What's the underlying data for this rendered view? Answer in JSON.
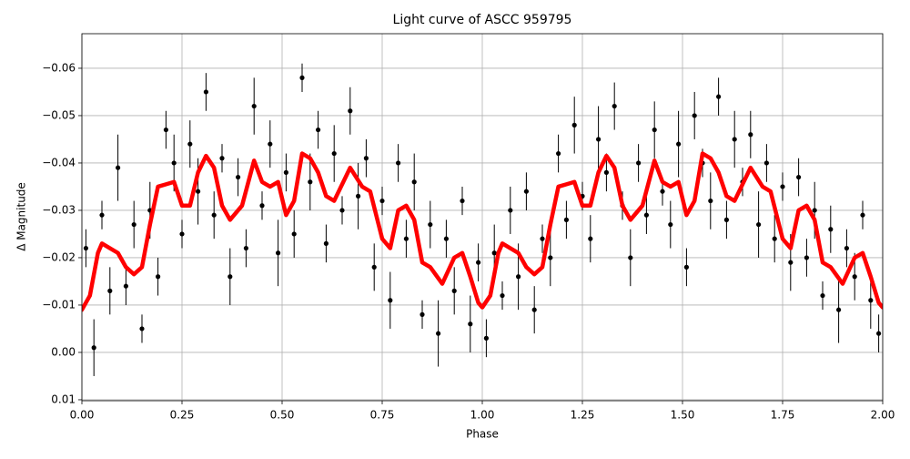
{
  "chart_data": {
    "type": "scatter",
    "title": "Light curve of ASCC 959795",
    "xlabel": "Phase",
    "ylabel": "Δ Magnitude",
    "xlim": [
      0,
      2
    ],
    "ylim": [
      0.0102,
      -0.0673
    ],
    "grid": true,
    "xticks": [
      {
        "value": 0,
        "label": "0.00"
      },
      0.25,
      {
        "value": 0.5,
        "label": "0.50"
      },
      0.75,
      {
        "value": 1,
        "label": "1.00"
      },
      1.25,
      {
        "value": 1.5,
        "label": "1.50"
      },
      1.75,
      {
        "value": 2,
        "label": "2.00"
      }
    ],
    "yticks": [
      {
        "value": -0.06,
        "label": "−0.06"
      },
      {
        "value": -0.05,
        "label": "−0.05"
      },
      {
        "value": -0.04,
        "label": "−0.04"
      },
      {
        "value": -0.03,
        "label": "−0.03"
      },
      {
        "value": -0.02,
        "label": "−0.02"
      },
      {
        "value": -0.01,
        "label": "−0.01"
      },
      {
        "value": 0,
        "label": "0.00"
      },
      0.01
    ],
    "series": [
      {
        "type": "errorbar",
        "color": "#000000",
        "x": [
          0.01,
          0.03,
          0.05,
          0.07,
          0.09,
          0.11,
          0.13,
          0.15,
          0.17,
          0.19,
          0.21,
          0.23,
          0.25,
          0.27,
          0.29,
          0.31,
          0.33,
          0.35,
          0.37,
          0.39,
          0.41,
          0.43,
          0.45,
          0.47,
          0.49,
          0.51,
          0.53,
          0.55,
          0.57,
          0.59,
          0.61,
          0.63,
          0.65,
          0.67,
          0.69,
          0.71,
          0.73,
          0.75,
          0.77,
          0.79,
          0.81,
          0.83,
          0.85,
          0.87,
          0.89,
          0.91,
          0.93,
          0.95,
          0.97,
          0.99,
          1.01,
          1.03,
          1.05,
          1.07,
          1.09,
          1.11,
          1.13,
          1.15,
          1.17,
          1.19,
          1.21,
          1.23,
          1.25,
          1.27,
          1.29,
          1.31,
          1.33,
          1.35,
          1.37,
          1.39,
          1.41,
          1.43,
          1.45,
          1.47,
          1.49,
          1.51,
          1.53,
          1.55,
          1.57,
          1.59,
          1.61,
          1.63,
          1.65,
          1.67,
          1.69,
          1.71,
          1.73,
          1.75,
          1.77,
          1.79,
          1.81,
          1.83,
          1.85,
          1.87,
          1.89,
          1.91,
          1.93,
          1.95,
          1.97,
          1.99
        ],
        "values": [
          -0.022,
          -0.001,
          -0.029,
          -0.013,
          -0.039,
          -0.014,
          -0.027,
          -0.005,
          -0.03,
          -0.016,
          -0.047,
          -0.04,
          -0.025,
          -0.044,
          -0.034,
          -0.055,
          -0.029,
          -0.041,
          -0.016,
          -0.037,
          -0.022,
          -0.052,
          -0.031,
          -0.044,
          -0.021,
          -0.038,
          -0.025,
          -0.058,
          -0.036,
          -0.047,
          -0.023,
          -0.042,
          -0.03,
          -0.051,
          -0.033,
          -0.041,
          -0.018,
          -0.032,
          -0.011,
          -0.04,
          -0.024,
          -0.036,
          -0.008,
          -0.027,
          -0.004,
          -0.024,
          -0.013,
          -0.032,
          -0.006,
          -0.019,
          -0.003,
          -0.021,
          -0.012,
          -0.03,
          -0.016,
          -0.034,
          -0.009,
          -0.024,
          -0.02,
          -0.042,
          -0.028,
          -0.048,
          -0.033,
          -0.024,
          -0.045,
          -0.038,
          -0.052,
          -0.031,
          -0.02,
          -0.04,
          -0.029,
          -0.047,
          -0.034,
          -0.027,
          -0.044,
          -0.018,
          -0.05,
          -0.04,
          -0.032,
          -0.054,
          -0.028,
          -0.045,
          -0.036,
          -0.046,
          -0.027,
          -0.04,
          -0.024,
          -0.035,
          -0.019,
          -0.037,
          -0.02,
          -0.03,
          -0.012,
          -0.026,
          -0.009,
          -0.022,
          -0.016,
          -0.029,
          -0.011,
          -0.004
        ],
        "errors": [
          0.004,
          0.006,
          0.003,
          0.005,
          0.007,
          0.004,
          0.005,
          0.003,
          0.006,
          0.004,
          0.004,
          0.006,
          0.003,
          0.005,
          0.007,
          0.004,
          0.005,
          0.003,
          0.006,
          0.004,
          0.004,
          0.006,
          0.003,
          0.005,
          0.007,
          0.004,
          0.005,
          0.003,
          0.006,
          0.004,
          0.004,
          0.006,
          0.003,
          0.005,
          0.007,
          0.004,
          0.005,
          0.003,
          0.006,
          0.004,
          0.004,
          0.006,
          0.003,
          0.005,
          0.007,
          0.004,
          0.005,
          0.003,
          0.006,
          0.004,
          0.004,
          0.006,
          0.003,
          0.005,
          0.007,
          0.004,
          0.005,
          0.003,
          0.006,
          0.004,
          0.004,
          0.006,
          0.003,
          0.005,
          0.007,
          0.004,
          0.005,
          0.003,
          0.006,
          0.004,
          0.004,
          0.006,
          0.003,
          0.005,
          0.007,
          0.004,
          0.005,
          0.003,
          0.006,
          0.004,
          0.004,
          0.006,
          0.003,
          0.005,
          0.007,
          0.004,
          0.005,
          0.003,
          0.006,
          0.004,
          0.004,
          0.006,
          0.003,
          0.005,
          0.007,
          0.004,
          0.005,
          0.003,
          0.006,
          0.004
        ]
      },
      {
        "type": "line",
        "color": "#ff0000",
        "x": [
          0,
          0.02,
          0.04,
          0.05,
          0.07,
          0.09,
          0.11,
          0.13,
          0.15,
          0.17,
          0.19,
          0.21,
          0.23,
          0.25,
          0.27,
          0.29,
          0.31,
          0.33,
          0.35,
          0.37,
          0.4,
          0.43,
          0.45,
          0.47,
          0.49,
          0.51,
          0.53,
          0.55,
          0.57,
          0.59,
          0.61,
          0.63,
          0.67,
          0.7,
          0.72,
          0.75,
          0.77,
          0.79,
          0.81,
          0.83,
          0.85,
          0.87,
          0.9,
          0.93,
          0.95,
          0.97,
          0.99,
          1.0,
          1.02,
          1.04,
          1.05,
          1.07,
          1.09,
          1.11,
          1.13,
          1.15,
          1.17,
          1.19,
          1.21,
          1.23,
          1.25,
          1.27,
          1.29,
          1.31,
          1.33,
          1.35,
          1.37,
          1.4,
          1.43,
          1.45,
          1.47,
          1.49,
          1.51,
          1.53,
          1.55,
          1.57,
          1.59,
          1.61,
          1.63,
          1.67,
          1.7,
          1.72,
          1.75,
          1.77,
          1.79,
          1.81,
          1.83,
          1.85,
          1.87,
          1.9,
          1.93,
          1.95,
          1.97,
          1.99,
          2.0
        ],
        "values": [
          -0.009,
          -0.012,
          -0.021,
          -0.023,
          -0.022,
          -0.021,
          -0.018,
          -0.0165,
          -0.018,
          -0.027,
          -0.035,
          -0.0355,
          -0.036,
          -0.031,
          -0.031,
          -0.038,
          -0.0415,
          -0.039,
          -0.031,
          -0.028,
          -0.031,
          -0.0405,
          -0.036,
          -0.035,
          -0.036,
          -0.029,
          -0.032,
          -0.042,
          -0.041,
          -0.038,
          -0.033,
          -0.032,
          -0.039,
          -0.035,
          -0.034,
          -0.024,
          -0.022,
          -0.03,
          -0.031,
          -0.028,
          -0.019,
          -0.018,
          -0.0145,
          -0.02,
          -0.021,
          -0.016,
          -0.0105,
          -0.0095,
          -0.012,
          -0.021,
          -0.023,
          -0.022,
          -0.021,
          -0.018,
          -0.0165,
          -0.018,
          -0.027,
          -0.035,
          -0.0355,
          -0.036,
          -0.031,
          -0.031,
          -0.038,
          -0.0415,
          -0.039,
          -0.031,
          -0.028,
          -0.031,
          -0.0405,
          -0.036,
          -0.035,
          -0.036,
          -0.029,
          -0.032,
          -0.042,
          -0.041,
          -0.038,
          -0.033,
          -0.032,
          -0.039,
          -0.035,
          -0.034,
          -0.024,
          -0.022,
          -0.03,
          -0.031,
          -0.028,
          -0.019,
          -0.018,
          -0.0145,
          -0.02,
          -0.021,
          -0.016,
          -0.0105,
          -0.0095
        ]
      }
    ]
  }
}
